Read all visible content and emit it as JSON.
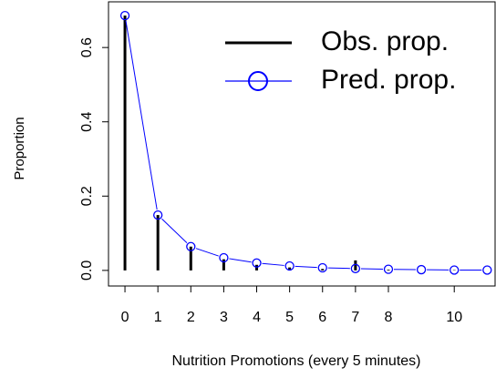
{
  "chart_data": {
    "type": "line",
    "x_label": "Nutrition Promotions (every 5 minutes)",
    "y_label": "Proportion",
    "x": [
      0,
      1,
      2,
      3,
      4,
      5,
      6,
      7,
      8,
      9,
      10,
      11
    ],
    "series": [
      {
        "name": "Obs. prop.",
        "color": "#000000",
        "style": "h",
        "values": [
          0.686,
          0.149,
          0.064,
          0.03,
          0.015,
          0.008,
          0.004,
          0.027,
          0.002,
          0,
          0.001,
          0
        ]
      },
      {
        "name": "Pred. prop.",
        "color": "#0000ff",
        "style": "b",
        "values": [
          0.686,
          0.149,
          0.064,
          0.034,
          0.02,
          0.012,
          0.007,
          0.005,
          0.003,
          0.002,
          0.001,
          0.001
        ]
      }
    ],
    "xlim": [
      -0.5,
      11.24
    ],
    "ylim": [
      -0.042,
      0.723
    ],
    "xticks": [
      0,
      1,
      2,
      3,
      4,
      5,
      6,
      7,
      8,
      10
    ],
    "yticks": [
      {
        "value": 0,
        "label": "0.0"
      },
      0.2,
      0.4,
      0.6
    ],
    "legend": "topright"
  }
}
